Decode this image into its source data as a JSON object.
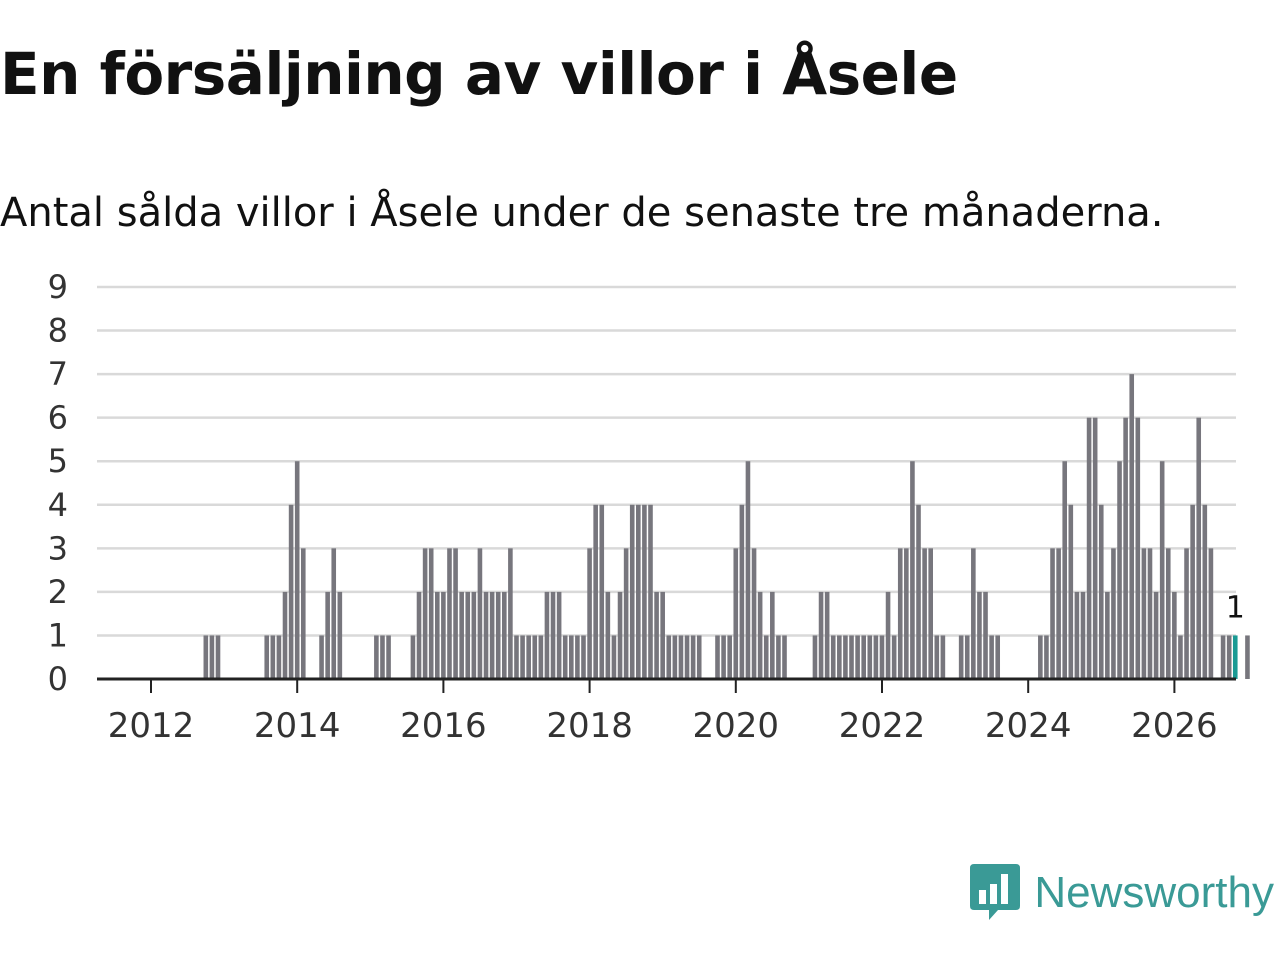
{
  "title": "En försäljning av villor i Åsele",
  "subtitle": "Antal sålda villor i Åsele under de senaste tre månaderna.",
  "brand": {
    "name": "Newsworthy",
    "color": "#3a9a96",
    "icon": "newsworthy-logo-icon"
  },
  "colors": {
    "bar": "#77767d",
    "highlight": "#1a9a94",
    "grid": "#d9d9d9",
    "axis": "#222222"
  },
  "chart_data": {
    "type": "bar",
    "title": "En försäljning av villor i Åsele",
    "subtitle": "Antal sålda villor i Åsele under de senaste tre månaderna.",
    "xlabel": "",
    "ylabel": "",
    "ylim": [
      0,
      9
    ],
    "yticks": [
      0,
      1,
      2,
      3,
      4,
      5,
      6,
      7,
      8,
      9
    ],
    "xticks": [
      {
        "label": "2012",
        "value": 2012.0
      },
      {
        "label": "2014",
        "value": 2014.0
      },
      {
        "label": "2016",
        "value": 2016.0
      },
      {
        "label": "2018",
        "value": 2018.0
      },
      {
        "label": "2020",
        "value": 2020.0
      },
      {
        "label": "2022",
        "value": 2022.0
      },
      {
        "label": "2024",
        "value": 2024.0
      },
      {
        "label": "2026",
        "value": 2026.0
      }
    ],
    "x_start": 2011.25,
    "month_step": 0.08333,
    "values": [
      0,
      0,
      0,
      0,
      0,
      0,
      0,
      0,
      0,
      0,
      0,
      0,
      0,
      0,
      0,
      0,
      0,
      0,
      1,
      1,
      1,
      0,
      0,
      0,
      0,
      0,
      0,
      0,
      1,
      1,
      1,
      2,
      4,
      5,
      3,
      0,
      0,
      1,
      2,
      3,
      2,
      0,
      0,
      0,
      0,
      0,
      1,
      1,
      1,
      0,
      0,
      0,
      1,
      2,
      3,
      3,
      2,
      2,
      3,
      3,
      2,
      2,
      2,
      3,
      2,
      2,
      2,
      2,
      3,
      1,
      1,
      1,
      1,
      1,
      2,
      2,
      2,
      1,
      1,
      1,
      1,
      3,
      4,
      4,
      2,
      1,
      2,
      3,
      4,
      4,
      4,
      4,
      2,
      2,
      1,
      1,
      1,
      1,
      1,
      1,
      0,
      0,
      1,
      1,
      1,
      3,
      4,
      5,
      3,
      2,
      1,
      2,
      1,
      1,
      0,
      0,
      0,
      0,
      1,
      2,
      2,
      1,
      1,
      1,
      1,
      1,
      1,
      1,
      1,
      1,
      2,
      1,
      3,
      3,
      5,
      4,
      3,
      3,
      1,
      1,
      0,
      0,
      1,
      1,
      3,
      2,
      2,
      1,
      1,
      0,
      0,
      0,
      0,
      0,
      0,
      1,
      1,
      3,
      3,
      5,
      4,
      2,
      2,
      6,
      6,
      4,
      2,
      3,
      5,
      6,
      7,
      6,
      3,
      3,
      2,
      5,
      3,
      2,
      1,
      3,
      4,
      6,
      4,
      3,
      0,
      1,
      1,
      1,
      0,
      1
    ],
    "highlight_index": 187,
    "annotations": [
      {
        "index": 187,
        "text": "1"
      }
    ]
  }
}
